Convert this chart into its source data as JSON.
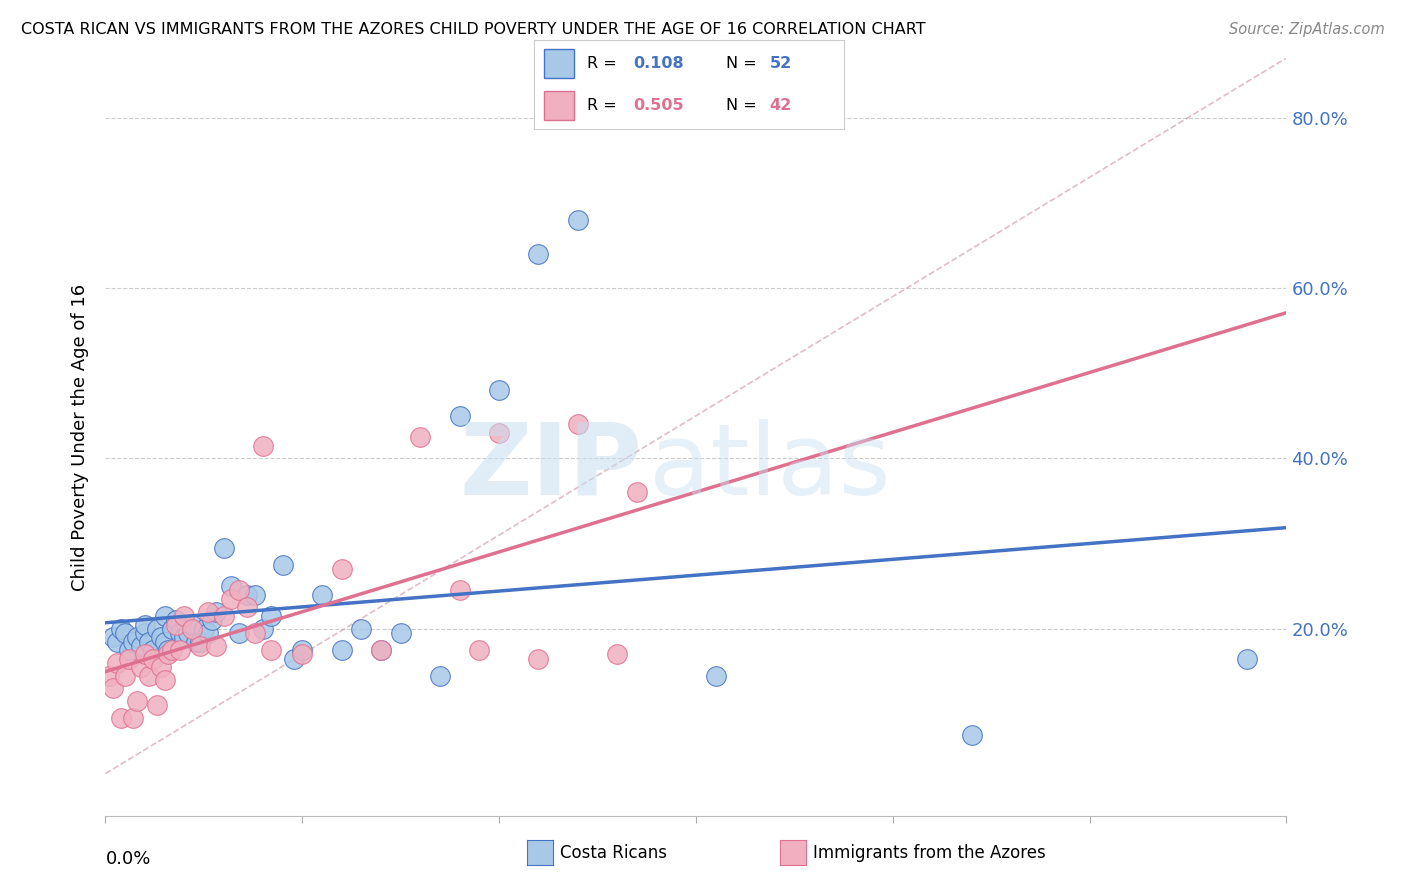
{
  "title": "COSTA RICAN VS IMMIGRANTS FROM THE AZORES CHILD POVERTY UNDER THE AGE OF 16 CORRELATION CHART",
  "source": "Source: ZipAtlas.com",
  "ylabel": "Child Poverty Under the Age of 16",
  "legend_label1": "Costa Ricans",
  "legend_label2": "Immigrants from the Azores",
  "watermark_zip": "ZIP",
  "watermark_atlas": "atlas",
  "color_blue": "#A8C8E8",
  "color_pink": "#F0B0C0",
  "color_blue_dark": "#4472C4",
  "color_pink_dark": "#E07090",
  "color_diag": "#D0A0B0",
  "right_axis_color": "#4472C4",
  "xlim": [
    0.0,
    0.3
  ],
  "ylim": [
    -0.02,
    0.87
  ],
  "blue_scatter_x": [
    0.002,
    0.003,
    0.004,
    0.005,
    0.006,
    0.007,
    0.008,
    0.009,
    0.01,
    0.01,
    0.011,
    0.012,
    0.013,
    0.014,
    0.015,
    0.015,
    0.016,
    0.017,
    0.018,
    0.019,
    0.02,
    0.021,
    0.022,
    0.023,
    0.024,
    0.025,
    0.026,
    0.027,
    0.028,
    0.03,
    0.032,
    0.034,
    0.036,
    0.038,
    0.04,
    0.042,
    0.045,
    0.048,
    0.05,
    0.055,
    0.06,
    0.065,
    0.07,
    0.075,
    0.085,
    0.09,
    0.1,
    0.11,
    0.12,
    0.155,
    0.22,
    0.29
  ],
  "blue_scatter_y": [
    0.19,
    0.185,
    0.2,
    0.195,
    0.175,
    0.185,
    0.19,
    0.18,
    0.195,
    0.205,
    0.185,
    0.175,
    0.2,
    0.19,
    0.185,
    0.215,
    0.175,
    0.2,
    0.21,
    0.195,
    0.19,
    0.195,
    0.205,
    0.185,
    0.185,
    0.2,
    0.195,
    0.21,
    0.22,
    0.295,
    0.25,
    0.195,
    0.24,
    0.24,
    0.2,
    0.215,
    0.275,
    0.165,
    0.175,
    0.24,
    0.175,
    0.2,
    0.175,
    0.195,
    0.145,
    0.45,
    0.48,
    0.64,
    0.68,
    0.145,
    0.075,
    0.165
  ],
  "pink_scatter_x": [
    0.001,
    0.002,
    0.003,
    0.004,
    0.005,
    0.006,
    0.007,
    0.008,
    0.009,
    0.01,
    0.011,
    0.012,
    0.013,
    0.014,
    0.015,
    0.016,
    0.017,
    0.018,
    0.019,
    0.02,
    0.022,
    0.024,
    0.026,
    0.028,
    0.03,
    0.032,
    0.034,
    0.036,
    0.038,
    0.04,
    0.042,
    0.05,
    0.06,
    0.07,
    0.08,
    0.09,
    0.095,
    0.1,
    0.11,
    0.12,
    0.13,
    0.135
  ],
  "pink_scatter_y": [
    0.145,
    0.13,
    0.16,
    0.095,
    0.145,
    0.165,
    0.095,
    0.115,
    0.155,
    0.17,
    0.145,
    0.165,
    0.11,
    0.155,
    0.14,
    0.17,
    0.175,
    0.205,
    0.175,
    0.215,
    0.2,
    0.18,
    0.22,
    0.18,
    0.215,
    0.235,
    0.245,
    0.225,
    0.195,
    0.415,
    0.175,
    0.17,
    0.27,
    0.175,
    0.425,
    0.245,
    0.175,
    0.43,
    0.165,
    0.44,
    0.17,
    0.36
  ]
}
